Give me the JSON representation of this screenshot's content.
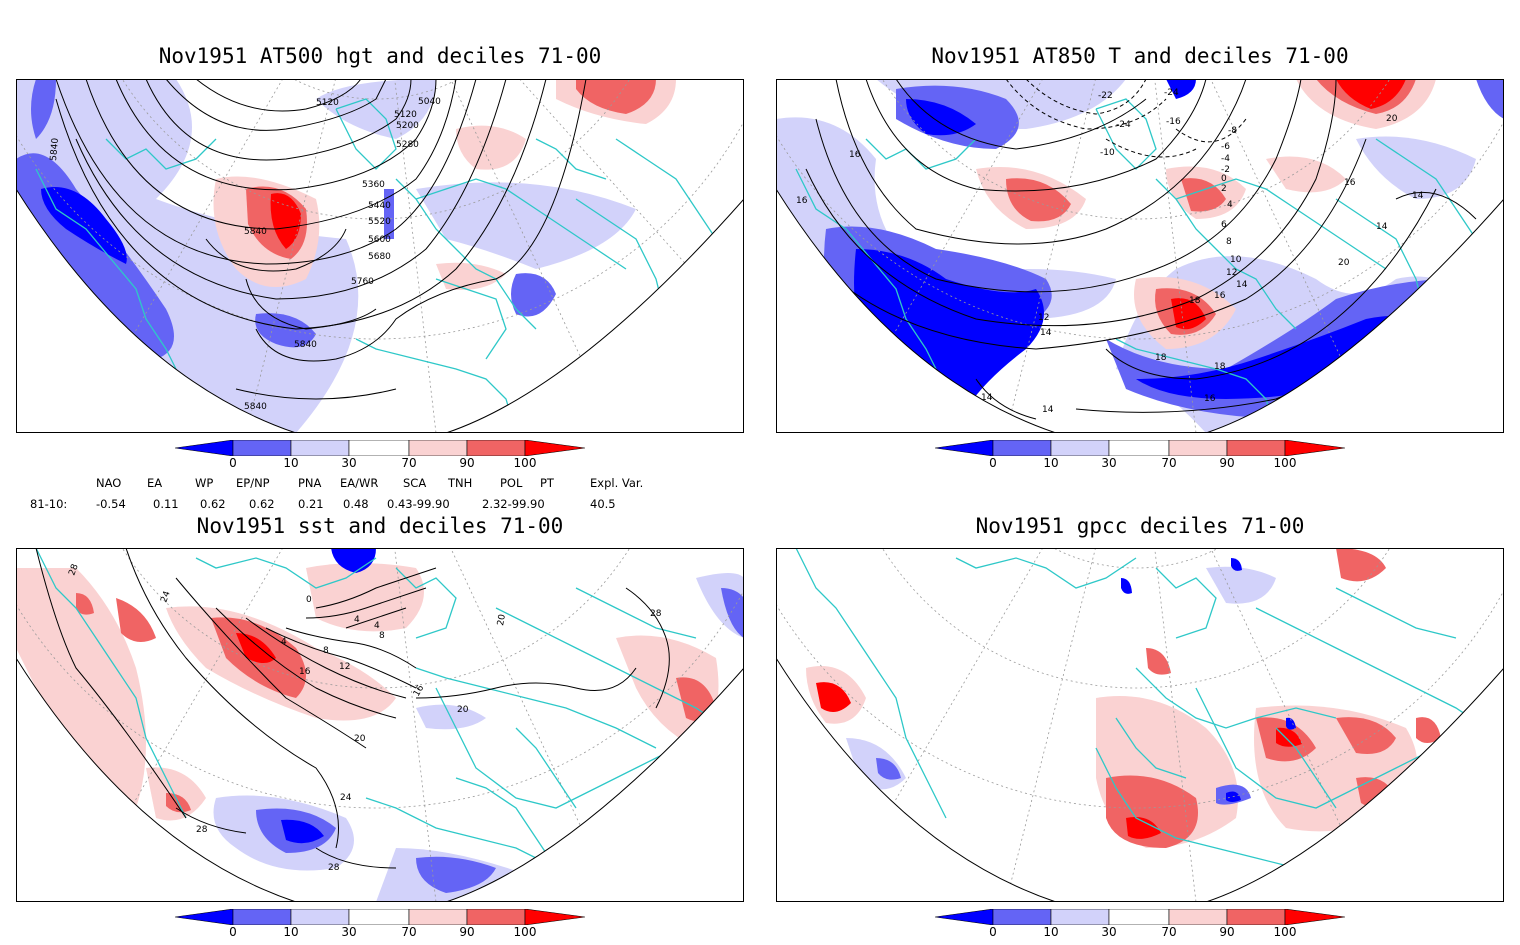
{
  "panels": [
    {
      "title": "Nov1951 AT500 hgt and deciles 71-00",
      "contour_labels": [
        "5120",
        "5040",
        "5120",
        "5200",
        "5280",
        "5360",
        "5440",
        "5520",
        "5600",
        "5680",
        "5760",
        "5840",
        "5840",
        "5840",
        "5840"
      ]
    },
    {
      "title": "Nov1951 AT850 T and deciles 71-00",
      "contour_labels": [
        "-22",
        "-24",
        "-24",
        "-16",
        "-10",
        "-8",
        "-6",
        "-4",
        "-2",
        "0",
        "2",
        "4",
        "6",
        "8",
        "10",
        "12",
        "14",
        "16",
        "18",
        "20",
        "16",
        "16",
        "16",
        "14",
        "12",
        "14",
        "18",
        "18",
        "20",
        "16",
        "16",
        "14",
        "14",
        "14"
      ]
    },
    {
      "title": "Nov1951 sst and deciles 71-00",
      "contour_labels": [
        "28",
        "24",
        "20",
        "16",
        "12",
        "8",
        "4",
        "0",
        "4",
        "4",
        "8",
        "16",
        "20",
        "24",
        "28",
        "28",
        "20",
        "28"
      ]
    },
    {
      "title": "Nov1951 gpcc deciles 71-00",
      "contour_labels": []
    }
  ],
  "colorbar": {
    "ticks": [
      "0",
      "10",
      "30",
      "70",
      "90",
      "100"
    ],
    "colors": [
      "#0000ff",
      "#6464f5",
      "#d2d2fa",
      "#ffffff",
      "#fad2d2",
      "#f06464",
      "#ff0000"
    ]
  },
  "indices": {
    "headers": [
      "NAO",
      "EA",
      "WP",
      "EP/NP",
      "PNA",
      "EA/WR",
      "SCA",
      "TNH",
      "POL",
      "PT",
      "Expl. Var."
    ],
    "row_label": "81-10:",
    "values": [
      "-0.54",
      "0.11",
      "0.62",
      "0.62",
      "0.21",
      "0.48",
      "0.43-99.90",
      "2.32-99.90",
      "40.5"
    ]
  },
  "colors": {
    "coastline": "#2ec8c8",
    "contour": "#000000",
    "grid": "#9a9a9a"
  }
}
